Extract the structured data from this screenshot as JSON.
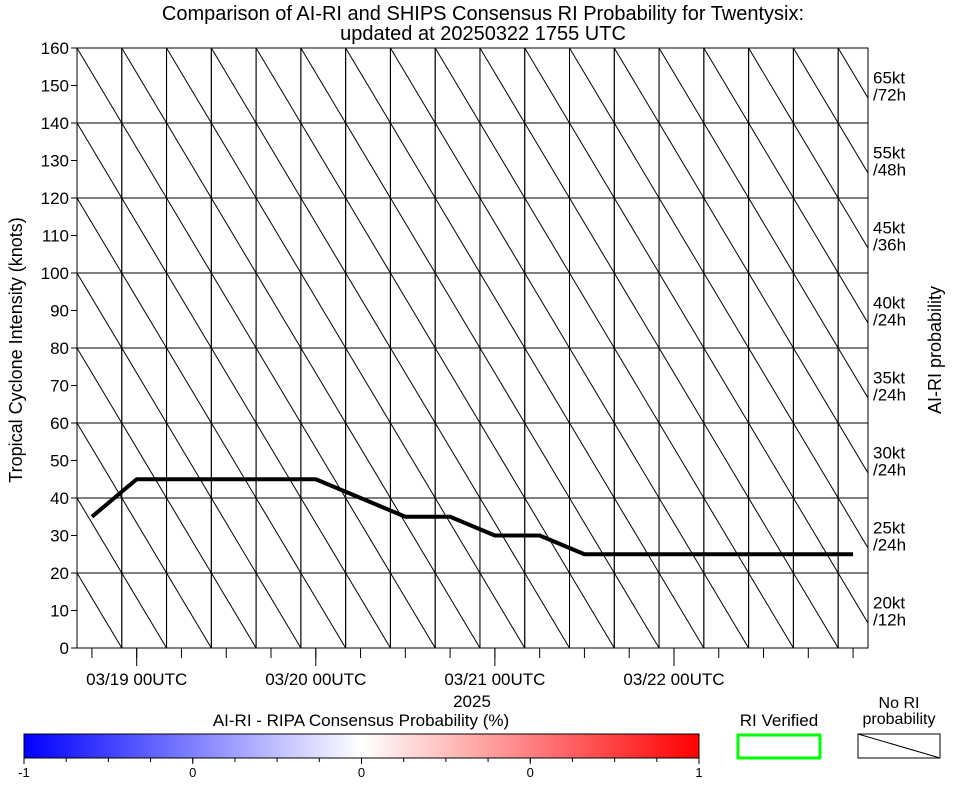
{
  "chart_data": {
    "type": "line",
    "title": "Comparison of AI-RI and SHIPS Consensus RI Probability for Twentysix:",
    "subtitle": "updated at 20250322 1755 UTC",
    "ylabel": "Tropical Cyclone Intensity (knots)",
    "right_label": "AI-RI probability",
    "xlabel": "2025",
    "ylim": [
      0,
      160
    ],
    "xlim": [
      -8,
      98
    ],
    "y_ticks": [
      0,
      10,
      20,
      30,
      40,
      50,
      60,
      70,
      80,
      90,
      100,
      110,
      120,
      130,
      140,
      150,
      160
    ],
    "x_ticks": [
      {
        "hour": 0,
        "label": "03/19 00UTC"
      },
      {
        "hour": 24,
        "label": "03/20 00UTC"
      },
      {
        "hour": 48,
        "label": "03/21 00UTC"
      },
      {
        "hour": 72,
        "label": "03/22 00UTC"
      }
    ],
    "rows": [
      {
        "range": [
          0,
          20
        ],
        "label1": "20kt",
        "label2": "/12h"
      },
      {
        "range": [
          20,
          40
        ],
        "label1": "25kt",
        "label2": "/24h"
      },
      {
        "range": [
          40,
          60
        ],
        "label1": "30kt",
        "label2": "/24h"
      },
      {
        "range": [
          60,
          80
        ],
        "label1": "35kt",
        "label2": "/24h"
      },
      {
        "range": [
          80,
          100
        ],
        "label1": "40kt",
        "label2": "/24h"
      },
      {
        "range": [
          100,
          120
        ],
        "label1": "45kt",
        "label2": "/36h"
      },
      {
        "range": [
          120,
          140
        ],
        "label1": "55kt",
        "label2": "/48h"
      },
      {
        "range": [
          140,
          160
        ],
        "label1": "65kt",
        "label2": "/72h"
      }
    ],
    "series": [
      {
        "name": "intensity",
        "x": [
          -6,
          0,
          6,
          12,
          18,
          24,
          30,
          36,
          42,
          48,
          54,
          60,
          66,
          72,
          78,
          84,
          90,
          96
        ],
        "y": [
          35,
          45,
          45,
          45,
          45,
          45,
          40,
          35,
          35,
          30,
          30,
          25,
          25,
          25,
          25,
          25,
          25,
          25
        ]
      }
    ],
    "colorbar": {
      "title": "AI-RI - RIPA Consensus Probability (%)",
      "tick_labels": [
        "-1",
        "0",
        "0",
        "0",
        "1"
      ],
      "colors": [
        "#0000ff",
        "#ffffff",
        "#ff0000"
      ]
    },
    "legend": {
      "verified_label": "RI Verified",
      "verified_color": "#00ff00",
      "no_ri_label_1": "No RI",
      "no_ri_label_2": "probability"
    }
  }
}
